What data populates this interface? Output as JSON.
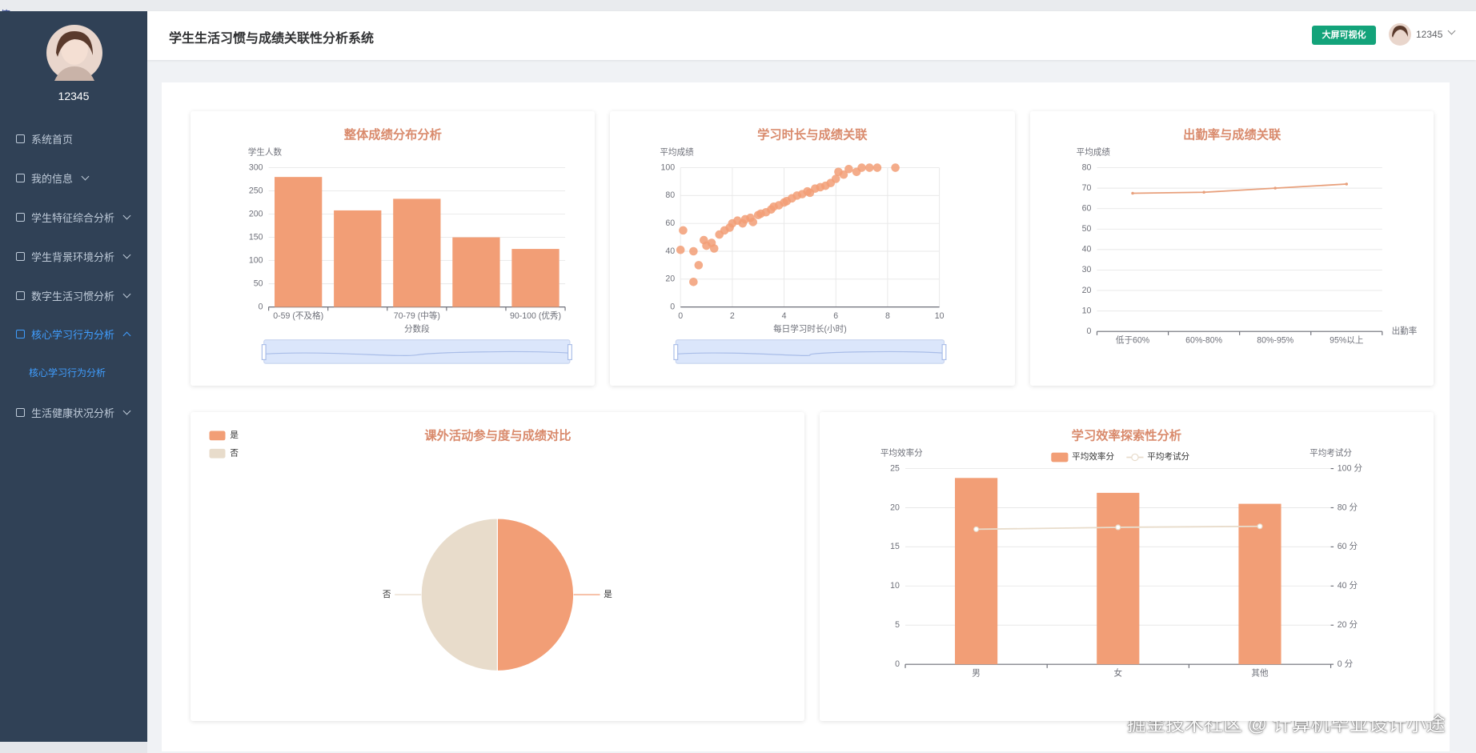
{
  "overlay_mark": "停",
  "sidebar": {
    "username": "12345",
    "menu": [
      "系统首页",
      "我的信息",
      "学生特征综合分析",
      "学生背景环境分析",
      "数字生活习惯分析",
      "核心学习行为分析",
      "生活健康状况分析"
    ],
    "active_submenu": "核心学习行为分析"
  },
  "header": {
    "title": "学生生活习惯与成绩关联性分析系统",
    "button": "大屏可视化",
    "username": "12345"
  },
  "watermark": "掘金技术社区 @ 计算机毕业设计小途",
  "chart_data": [
    {
      "type": "bar",
      "title": "整体成绩分布分析",
      "y_label": "学生人数",
      "x_label": "分数段",
      "categories": [
        "0-59 (不及格)",
        null,
        "70-79 (中等)",
        null,
        "90-100 (优秀)"
      ],
      "values": [
        280,
        208,
        233,
        150,
        125
      ],
      "color": "#f29e76",
      "ylim": [
        0,
        300
      ],
      "yticks": [
        0,
        50,
        100,
        150,
        200,
        250,
        300
      ],
      "grid": true
    },
    {
      "type": "scatter",
      "title": "学习时长与成绩关联",
      "y_label": "平均成绩",
      "x_label": "每日学习时长(小时)",
      "x": [
        0.0,
        0.1,
        0.5,
        0.5,
        0.7,
        0.9,
        1.0,
        1.2,
        1.3,
        1.5,
        1.7,
        1.9,
        2.0,
        2.2,
        2.4,
        2.5,
        2.7,
        2.8,
        3.0,
        3.1,
        3.3,
        3.5,
        3.6,
        3.8,
        4.0,
        4.1,
        4.3,
        4.5,
        4.7,
        4.9,
        5.0,
        5.2,
        5.4,
        5.6,
        5.8,
        6.0,
        6.1,
        6.3,
        6.5,
        6.8,
        7.0,
        7.3,
        7.6,
        8.3
      ],
      "values": [
        41,
        55,
        40,
        18,
        30,
        48,
        44,
        46,
        42,
        52,
        55,
        57,
        60,
        62,
        60,
        63,
        64,
        61,
        66,
        67,
        68,
        70,
        72,
        73,
        75,
        76,
        78,
        80,
        81,
        83,
        82,
        85,
        86,
        87,
        89,
        92,
        97,
        95,
        99,
        97,
        100,
        100,
        100,
        100
      ],
      "color": "#f29e76",
      "xlim": [
        0,
        10
      ],
      "xticks": [
        0,
        2,
        4,
        6,
        8,
        10
      ],
      "ylim": [
        0,
        100
      ],
      "yticks": [
        0,
        20,
        40,
        60,
        80,
        100
      ],
      "grid": true
    },
    {
      "type": "line",
      "title": "出勤率与成绩关联",
      "y_label": "平均成绩",
      "x_label": "出勤率",
      "categories": [
        "低于60%",
        "60%-80%",
        "80%-95%",
        "95%以上"
      ],
      "values": [
        67.5,
        68,
        70,
        72
      ],
      "color": "#e8a07c",
      "ylim": [
        0,
        80
      ],
      "yticks": [
        0,
        10,
        20,
        30,
        40,
        50,
        60,
        70,
        80
      ],
      "grid": true
    },
    {
      "type": "pie",
      "title": "课外活动参与度与成绩对比",
      "categories": [
        "是",
        "否"
      ],
      "values": [
        50,
        50
      ],
      "colors": [
        "#f29e76",
        "#e8dccb"
      ],
      "legend": "top-left"
    },
    {
      "type": "bar",
      "title": "学习效率探索性分析",
      "y_label": "平均效率分",
      "y2_label": "平均考试分",
      "categories": [
        "男",
        "女",
        "其他"
      ],
      "series": [
        {
          "name": "平均效率分",
          "color": "#f29e76",
          "values": [
            23.8,
            21.9,
            20.5
          ]
        },
        {
          "name": "平均考试分",
          "color": "#e8dccb",
          "axis": "y2",
          "values": [
            69,
            70,
            70.5
          ]
        }
      ],
      "ylim": [
        0,
        25
      ],
      "yticks": [
        0,
        5,
        10,
        15,
        20,
        25
      ],
      "y2lim": [
        0,
        100
      ],
      "y2ticks": [
        {
          "value": 0,
          "label": "0 分"
        },
        {
          "value": 20,
          "label": "20 分"
        },
        {
          "value": 40,
          "label": "40 分"
        },
        {
          "value": 60,
          "label": "60 分"
        },
        {
          "value": 80,
          "label": "80 分"
        },
        {
          "value": 100,
          "label": "100 分"
        }
      ],
      "grid": true,
      "legend": "top"
    }
  ]
}
